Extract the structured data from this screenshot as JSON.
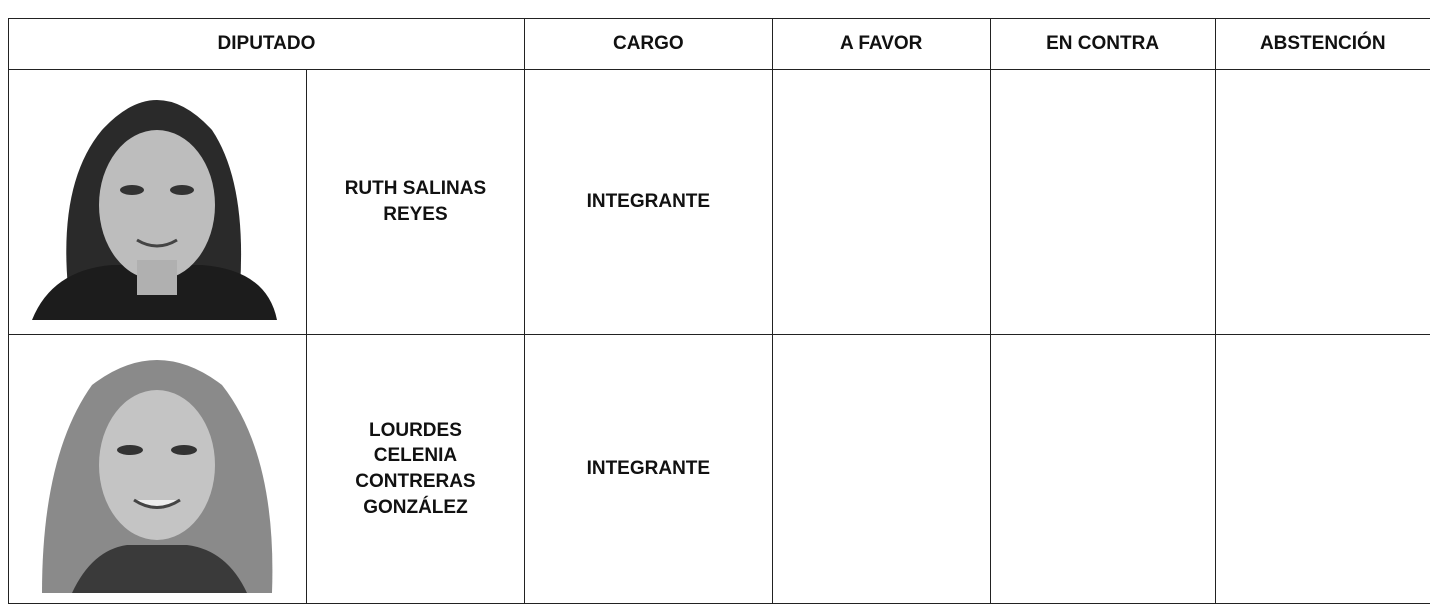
{
  "table": {
    "headers": [
      "DIPUTADO",
      "CARGO",
      "A FAVOR",
      "EN CONTRA",
      "ABSTENCIÓN"
    ],
    "rows": [
      {
        "name": "RUTH SALINAS REYES",
        "cargo": "INTEGRANTE"
      },
      {
        "name": "LOURDES CELENIA CONTRERAS GONZÁLEZ",
        "cargo": "INTEGRANTE"
      }
    ]
  }
}
